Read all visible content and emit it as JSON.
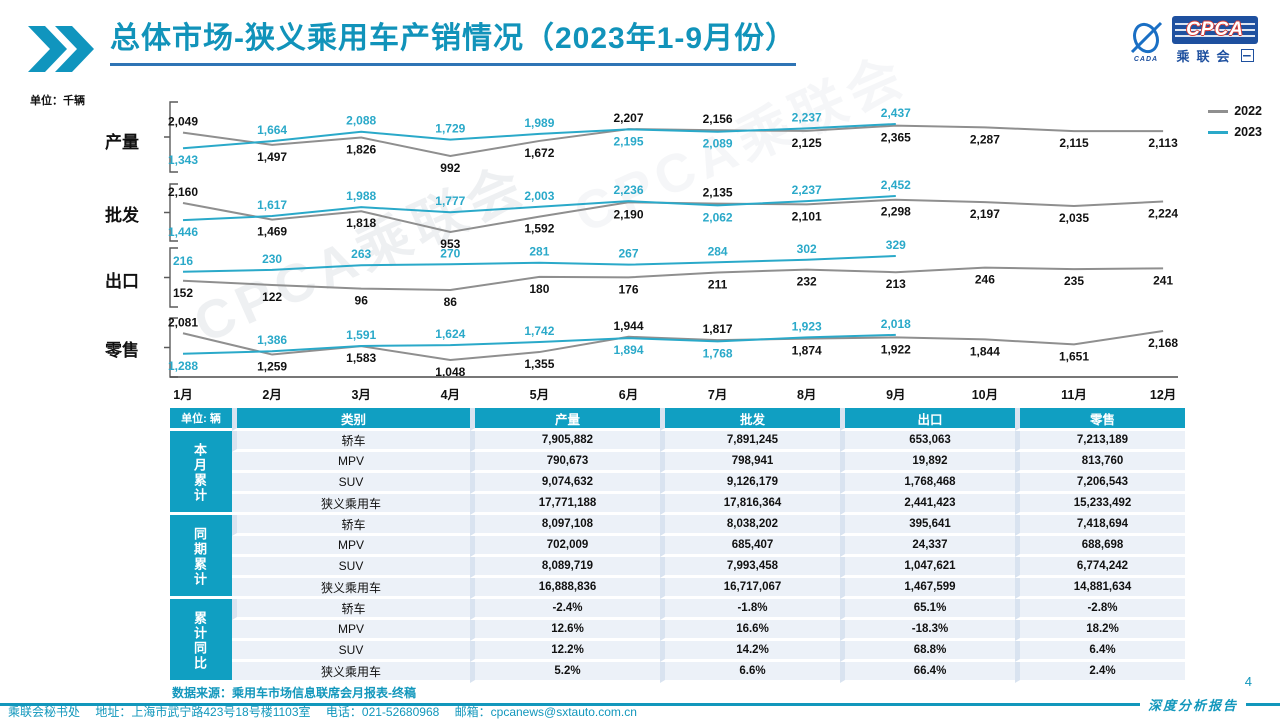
{
  "header": {
    "title": "总体市场-狭义乘用车产销情况（2023年1-9月份）",
    "logo": {
      "icon_label": "CADA",
      "box_label": "CPCA",
      "sub_label": "乘联会"
    }
  },
  "chart_data": {
    "type": "line",
    "unit_label": "单位：千辆",
    "categories": [
      "1月",
      "2月",
      "3月",
      "4月",
      "5月",
      "6月",
      "7月",
      "8月",
      "9月",
      "10月",
      "11月",
      "12月"
    ],
    "legend_position": "top-right",
    "legend": [
      {
        "name": "2022",
        "color": "#8f8f8f"
      },
      {
        "name": "2023",
        "color": "#2aa9c9"
      }
    ],
    "panels": [
      {
        "name": "产量",
        "series": [
          {
            "name": "2022",
            "color": "#8f8f8f",
            "values": [
              2049,
              1497,
              1826,
              992,
              1672,
              2207,
              2156,
              2125,
              2365,
              2287,
              2115,
              2113
            ]
          },
          {
            "name": "2023",
            "color": "#2aa9c9",
            "values": [
              1343,
              1664,
              2088,
              1729,
              1989,
              2195,
              2089,
              2237,
              2437
            ]
          }
        ]
      },
      {
        "name": "批发",
        "series": [
          {
            "name": "2022",
            "color": "#8f8f8f",
            "values": [
              2160,
              1469,
              1818,
              953,
              1592,
              2190,
              2135,
              2101,
              2298,
              2197,
              2035,
              2224
            ]
          },
          {
            "name": "2023",
            "color": "#2aa9c9",
            "values": [
              1446,
              1617,
              1988,
              1777,
              2003,
              2236,
              2062,
              2237,
              2452
            ]
          }
        ]
      },
      {
        "name": "出口",
        "series": [
          {
            "name": "2022",
            "color": "#8f8f8f",
            "values": [
              152,
              122,
              96,
              86,
              180,
              176,
              211,
              232,
              213,
              246,
              235,
              241
            ]
          },
          {
            "name": "2023",
            "color": "#2aa9c9",
            "values": [
              216,
              230,
              263,
              270,
              281,
              267,
              284,
              302,
              329
            ]
          }
        ]
      },
      {
        "name": "零售",
        "series": [
          {
            "name": "2022",
            "color": "#8f8f8f",
            "values": [
              2081,
              1259,
              1583,
              1048,
              1355,
              1944,
              1817,
              1874,
              1922,
              1844,
              1651,
              2168
            ]
          },
          {
            "name": "2023",
            "color": "#2aa9c9",
            "values": [
              1288,
              1386,
              1591,
              1624,
              1742,
              1894,
              1768,
              1923,
              2018
            ]
          }
        ]
      }
    ]
  },
  "table": {
    "unit_label": "单位: 辆",
    "columns": [
      "类别",
      "产量",
      "批发",
      "出口",
      "零售"
    ],
    "sections": [
      {
        "label": "本月累计",
        "rows": [
          {
            "category": "轿车",
            "values": [
              "7,905,882",
              "7,891,245",
              "653,063",
              "7,213,189"
            ]
          },
          {
            "category": "MPV",
            "values": [
              "790,673",
              "798,941",
              "19,892",
              "813,760"
            ]
          },
          {
            "category": "SUV",
            "values": [
              "9,074,632",
              "9,126,179",
              "1,768,468",
              "7,206,543"
            ]
          },
          {
            "category": "狭义乘用车",
            "values": [
              "17,771,188",
              "17,816,364",
              "2,441,423",
              "15,233,492"
            ]
          }
        ]
      },
      {
        "label": "同期累计",
        "rows": [
          {
            "category": "轿车",
            "values": [
              "8,097,108",
              "8,038,202",
              "395,641",
              "7,418,694"
            ]
          },
          {
            "category": "MPV",
            "values": [
              "702,009",
              "685,407",
              "24,337",
              "688,698"
            ]
          },
          {
            "category": "SUV",
            "values": [
              "8,089,719",
              "7,993,458",
              "1,047,621",
              "6,774,242"
            ]
          },
          {
            "category": "狭义乘用车",
            "values": [
              "16,888,836",
              "16,717,067",
              "1,467,599",
              "14,881,634"
            ]
          }
        ]
      },
      {
        "label": "累计同比",
        "rows": [
          {
            "category": "轿车",
            "values": [
              "-2.4%",
              "-1.8%",
              "65.1%",
              "-2.8%"
            ]
          },
          {
            "category": "MPV",
            "values": [
              "12.6%",
              "16.6%",
              "-18.3%",
              "18.2%"
            ]
          },
          {
            "category": "SUV",
            "values": [
              "12.2%",
              "14.2%",
              "68.8%",
              "6.4%"
            ]
          },
          {
            "category": "狭义乘用车",
            "values": [
              "5.2%",
              "6.6%",
              "66.4%",
              "2.4%"
            ]
          }
        ]
      }
    ]
  },
  "source_note": "数据来源：乘用车市场信息联席会月报表-终稿",
  "page_number": "4",
  "footer": {
    "org": "乘联会秘书处",
    "address": "地址：上海市武宁路423号18号楼1103室",
    "phone": "电话：021-52680968",
    "email": "邮箱：cpcanews@sxtauto.com.cn",
    "report_label": "深度分析报告"
  },
  "watermark": "CPCA乘联会",
  "colors": {
    "brand": "#1297bc",
    "table_header": "#109fc2",
    "title_underline": "#2e74b5",
    "series_2022": "#8f8f8f",
    "series_2023": "#2aa9c9",
    "logo_navy": "#1e509f",
    "logo_red": "#d9372f"
  }
}
